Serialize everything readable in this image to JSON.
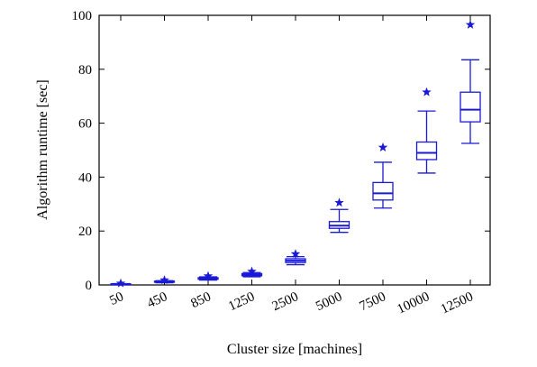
{
  "chart_data": {
    "type": "box",
    "xlabel": "Cluster size [machines]",
    "ylabel": "Algorithm runtime [sec]",
    "ylim": [
      0,
      100
    ],
    "yticks": [
      0,
      20,
      40,
      60,
      80,
      100
    ],
    "grid": false,
    "legend": "none",
    "color": "#1a1ad6",
    "categories": [
      "50",
      "450",
      "850",
      "1250",
      "2500",
      "5000",
      "7500",
      "10000",
      "12500"
    ],
    "boxes": [
      {
        "whisker_low": 0.1,
        "q1": 0.2,
        "median": 0.3,
        "q3": 0.4,
        "whisker_high": 0.5,
        "outlier": 0.6
      },
      {
        "whisker_low": 0.8,
        "q1": 1.0,
        "median": 1.2,
        "q3": 1.4,
        "whisker_high": 1.6,
        "outlier": 1.8
      },
      {
        "whisker_low": 1.8,
        "q1": 2.1,
        "median": 2.4,
        "q3": 2.7,
        "whisker_high": 3.0,
        "outlier": 3.3
      },
      {
        "whisker_low": 3.0,
        "q1": 3.4,
        "median": 3.8,
        "q3": 4.2,
        "whisker_high": 4.6,
        "outlier": 5.0
      },
      {
        "whisker_low": 7.5,
        "q1": 8.3,
        "median": 9.0,
        "q3": 9.7,
        "whisker_high": 10.5,
        "outlier": 11.5
      },
      {
        "whisker_low": 19.5,
        "q1": 21.0,
        "median": 22.0,
        "q3": 23.5,
        "whisker_high": 28.0,
        "outlier": 30.5
      },
      {
        "whisker_low": 28.5,
        "q1": 31.5,
        "median": 34.0,
        "q3": 38.0,
        "whisker_high": 45.5,
        "outlier": 51.0
      },
      {
        "whisker_low": 41.5,
        "q1": 46.5,
        "median": 49.0,
        "q3": 53.0,
        "whisker_high": 64.5,
        "outlier": 71.5
      },
      {
        "whisker_low": 52.5,
        "q1": 60.5,
        "median": 65.0,
        "q3": 71.5,
        "whisker_high": 83.5,
        "outlier": 96.5
      }
    ]
  }
}
